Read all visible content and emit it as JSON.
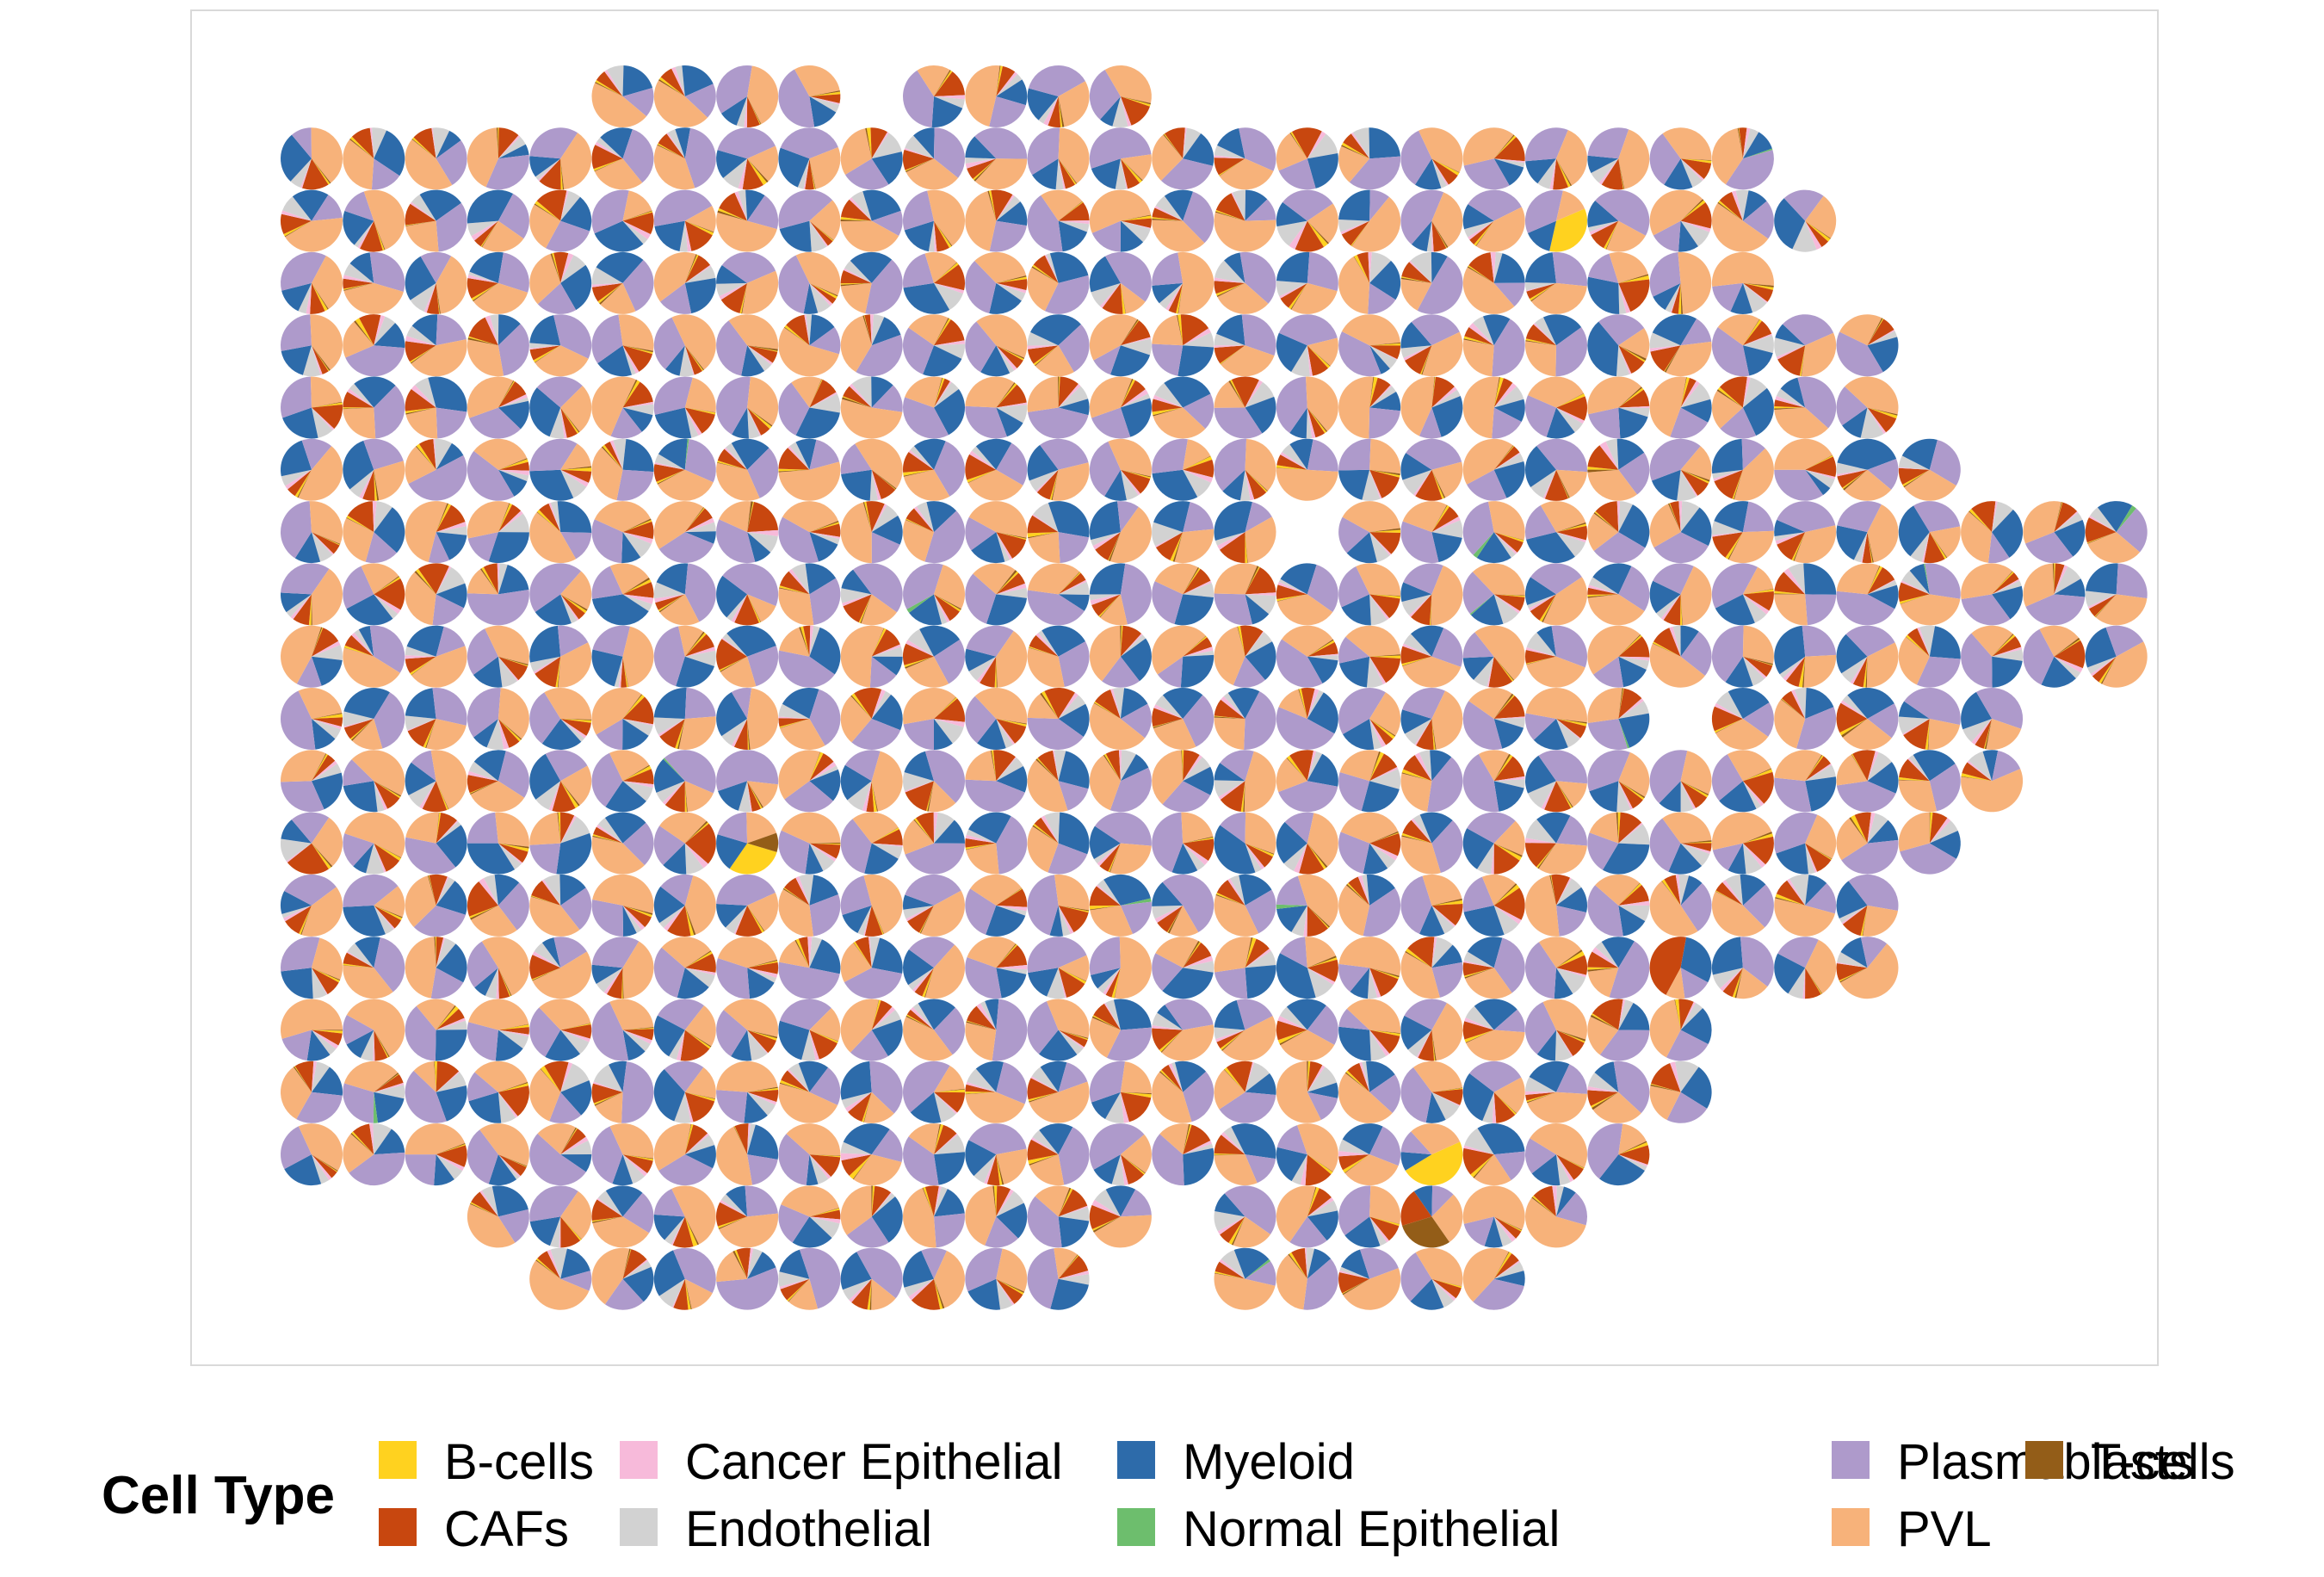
{
  "chart_data": {
    "type": "scatter-pie",
    "title": "",
    "xlabel": "",
    "ylabel": "",
    "grid": false,
    "legend_placement": "bottom",
    "legend": {
      "title": "Cell Type",
      "entries": [
        {
          "name": "B-cells",
          "color": "#FFD21F"
        },
        {
          "name": "CAFs",
          "color": "#C8470F"
        },
        {
          "name": "Cancer Epithelial",
          "color": "#F7BADA"
        },
        {
          "name": "Endothelial",
          "color": "#D2D2D2"
        },
        {
          "name": "Myeloid",
          "color": "#2D6BAA"
        },
        {
          "name": "Normal Epithelial",
          "color": "#6DBE6D"
        },
        {
          "name": "Plasmablasts",
          "color": "#AE9ACB"
        },
        {
          "name": "PVL",
          "color": "#F7B27A"
        },
        {
          "name": "T-cells",
          "color": "#935D18"
        }
      ]
    },
    "spot_grid": {
      "rows": 20,
      "cols": 30,
      "row_extents": [
        [
          5,
          13
        ],
        [
          0,
          23
        ],
        [
          0,
          24
        ],
        [
          0,
          23
        ],
        [
          0,
          25
        ],
        [
          0,
          25
        ],
        [
          0,
          26
        ],
        [
          0,
          29
        ],
        [
          0,
          29
        ],
        [
          0,
          29
        ],
        [
          0,
          27
        ],
        [
          0,
          27
        ],
        [
          0,
          26
        ],
        [
          0,
          25
        ],
        [
          0,
          25
        ],
        [
          0,
          22
        ],
        [
          0,
          22
        ],
        [
          0,
          21
        ],
        [
          3,
          20
        ],
        [
          4,
          19
        ]
      ],
      "missing_spots": [
        [
          0,
          9
        ],
        [
          7,
          16
        ],
        [
          10,
          22
        ],
        [
          18,
          14
        ],
        [
          19,
          13
        ],
        [
          19,
          14
        ],
        [
          12,
          28
        ],
        [
          13,
          29
        ]
      ]
    },
    "typical_composition": {
      "PVL": 0.34,
      "Plasmablasts": 0.3,
      "Myeloid": 0.18,
      "CAFs": 0.09,
      "Endothelial": 0.06,
      "Cancer Epithelial": 0.015,
      "B-cells": 0.01,
      "T-cells": 0.005
    },
    "notable_spots": [
      {
        "row": 12,
        "col": 7,
        "composition": {
          "B-cells": 0.3,
          "Myeloid": 0.2,
          "Plasmablasts": 0.2,
          "PVL": 0.2,
          "T-cells": 0.1
        }
      },
      {
        "row": 17,
        "col": 18,
        "composition": {
          "B-cells": 0.48,
          "PVL": 0.3,
          "Plasmablasts": 0.12,
          "Myeloid": 0.1
        }
      },
      {
        "row": 18,
        "col": 18,
        "composition": {
          "T-cells": 0.3,
          "PVL": 0.28,
          "CAFs": 0.2,
          "Plasmablasts": 0.12,
          "Myeloid": 0.1
        }
      },
      {
        "row": 2,
        "col": 20,
        "composition": {
          "B-cells": 0.35,
          "Plasmablasts": 0.35,
          "PVL": 0.15,
          "Myeloid": 0.15
        }
      },
      {
        "row": 14,
        "col": 22,
        "composition": {
          "CAFs": 0.45,
          "Myeloid": 0.3,
          "Plasmablasts": 0.15,
          "PVL": 0.1
        }
      }
    ]
  }
}
